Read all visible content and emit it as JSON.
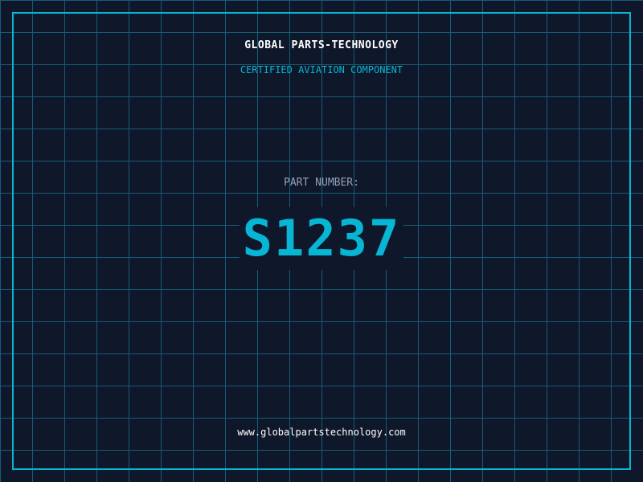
{
  "header": {
    "title": "GLOBAL PARTS-TECHNOLOGY",
    "subtitle": "CERTIFIED AVIATION COMPONENT"
  },
  "part": {
    "label": "PART NUMBER:",
    "number": "S1237"
  },
  "footer": {
    "url": "www.globalpartstechnology.com"
  },
  "colors": {
    "background": "#0f172a",
    "grid": "#155e75",
    "accent": "#06b6d4"
  }
}
